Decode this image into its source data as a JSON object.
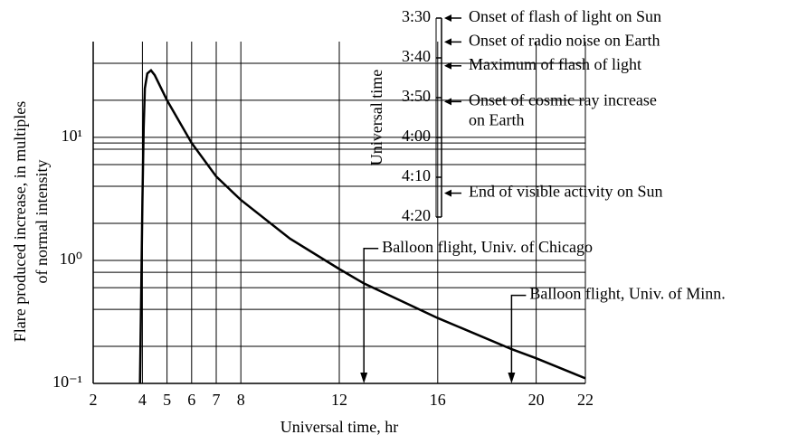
{
  "chart_data": [
    {
      "type": "line",
      "x_label": "Universal time, hr",
      "y_label": [
        "Flare produced increase, in multiples",
        "of normal intensity"
      ],
      "x": [
        3.9,
        3.95,
        4.0,
        4.05,
        4.1,
        4.2,
        4.35,
        4.5,
        5,
        6,
        7,
        8,
        10,
        12,
        13,
        16,
        19,
        20,
        22
      ],
      "values": [
        0.1,
        0.5,
        3,
        12,
        25,
        33,
        35,
        32,
        20,
        9,
        4.8,
        3.1,
        1.5,
        0.85,
        0.65,
        0.34,
        0.19,
        0.16,
        0.11
      ],
      "color": "#000000",
      "log_y": true,
      "grid": true,
      "xlim": [
        2,
        22
      ],
      "ylim": [
        0.1,
        60
      ],
      "xticks": [
        2,
        4,
        5,
        6,
        7,
        8,
        12,
        16,
        20,
        22
      ],
      "yticks": [
        {
          "value": 0.1,
          "label": "10⁻¹"
        },
        {
          "value": 1,
          "label": "10⁰"
        },
        {
          "value": 10,
          "label": "10¹"
        }
      ],
      "minor_yticks": [
        0.2,
        0.4,
        0.6,
        0.8,
        2,
        4,
        6,
        8,
        9,
        20,
        40
      ],
      "annotations": [
        {
          "text": "Balloon flight, Univ. of Chicago",
          "x": 13,
          "y": 1.25
        },
        {
          "text": "Balloon flight, Univ. of Minn.",
          "x": 19,
          "y": 0.52
        }
      ]
    },
    {
      "type": "timeline",
      "axis_label": "Universal time",
      "lim": [
        30,
        80
      ],
      "ticks": [
        {
          "value": 30,
          "label": "3:30"
        },
        {
          "value": 40,
          "label": "3:40"
        },
        {
          "value": 50,
          "label": "3:50"
        },
        {
          "value": 60,
          "label": "4:00"
        },
        {
          "value": 70,
          "label": "4:10"
        },
        {
          "value": 80,
          "label": "4:20"
        }
      ],
      "events": [
        {
          "time": 30,
          "label": [
            "Onset of flash of light on Sun"
          ]
        },
        {
          "time": 36,
          "label": [
            "Onset of radio noise on Earth"
          ]
        },
        {
          "time": 42,
          "label": [
            "Maximum of flash of light"
          ]
        },
        {
          "time": 51,
          "label": [
            "Onset of cosmic ray increase",
            "on Earth"
          ]
        },
        {
          "time": 74,
          "label": [
            "End of visible activity on Sun"
          ]
        }
      ]
    }
  ]
}
